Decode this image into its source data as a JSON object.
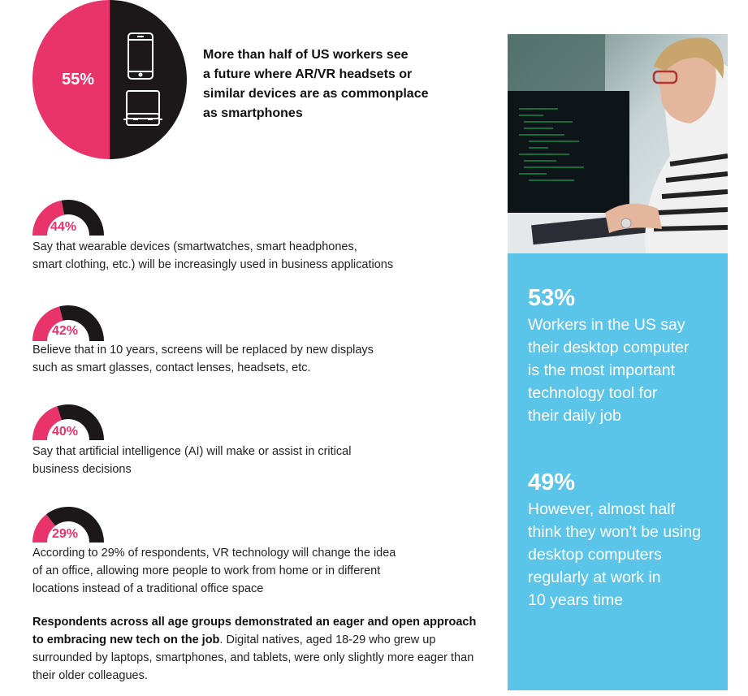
{
  "main_stat": {
    "percent_label": "55%",
    "value": 55,
    "headline_lines": [
      "More than half of US workers see",
      "a future where AR/VR headsets or",
      "similar devices are as commonplace",
      "as smartphones"
    ],
    "icons": [
      "smartphone-icon",
      "vr-headset-icon"
    ]
  },
  "stats": [
    {
      "percent_label": "44%",
      "value": 44,
      "lines": [
        "Say that wearable devices (smartwatches, smart headphones,",
        "smart clothing, etc.) will be increasingly used in business applications"
      ]
    },
    {
      "percent_label": "42%",
      "value": 42,
      "lines": [
        "Believe that in 10 years, screens will be replaced by new displays",
        "such as smart glasses, contact lenses, headsets, etc."
      ]
    },
    {
      "percent_label": "40%",
      "value": 40,
      "lines": [
        "Say that artificial intelligence (AI) will make or assist in critical",
        "business decisions"
      ]
    },
    {
      "percent_label": "29%",
      "value": 29,
      "lines": [
        "According to 29% of respondents, VR technology will change the idea",
        "of an office, allowing more people to work from home or in different",
        "locations instead of a traditional office space"
      ]
    }
  ],
  "closing": {
    "bold": "Respondents across all age groups demonstrated an eager and open approach to embracing new tech on the job",
    "rest": ". Digital natives, aged 18-29 who grew up surrounded by laptops, smartphones, and tablets, were only slightly more eager than their older colleagues."
  },
  "panel": {
    "stat1": {
      "percent_label": "53%",
      "lines": [
        "Workers in the US say",
        "their desktop computer",
        "is the most important",
        "technology tool for",
        "their daily job"
      ]
    },
    "stat2": {
      "percent_label": "49%",
      "lines": [
        "However, almost half",
        "think they won't be using",
        "desktop computers",
        "regularly at work in",
        "10 years time"
      ]
    }
  },
  "colors": {
    "accent_pink": "#e8336b",
    "dark": "#1c1718",
    "panel_blue": "#5bc5e9"
  }
}
